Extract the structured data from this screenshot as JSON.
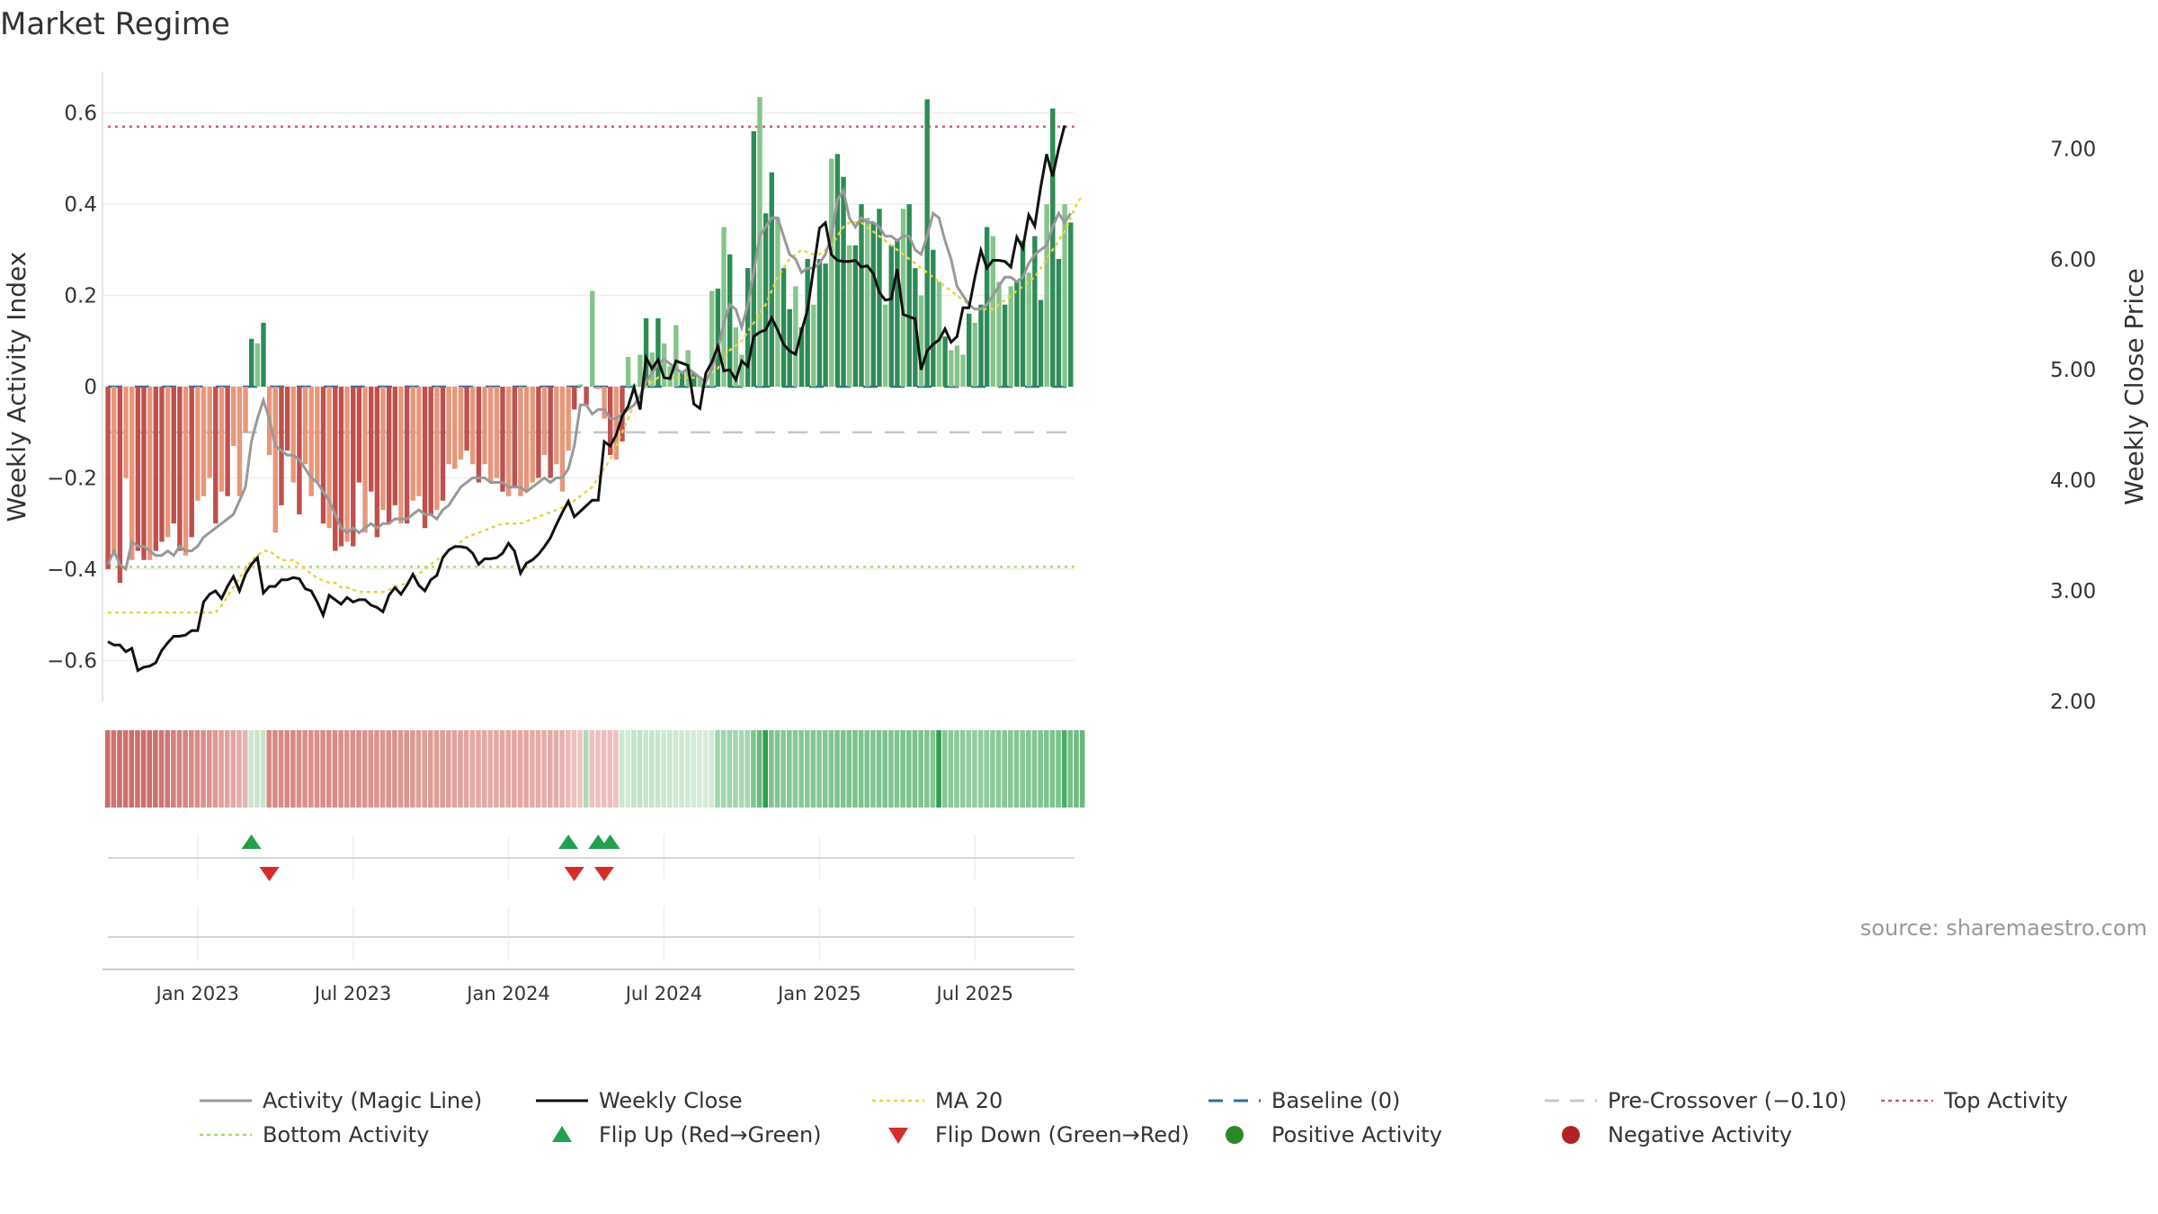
{
  "title": "Market Regime",
  "source": "source: sharemaestro.com",
  "chart_data": {
    "type": "bar",
    "x_axis": {
      "ticks": [
        {
          "label": "Jan 2023",
          "week": 15
        },
        {
          "label": "Jul 2023",
          "week": 41
        },
        {
          "label": "Jan 2024",
          "week": 67
        },
        {
          "label": "Jul 2024",
          "week": 93
        },
        {
          "label": "Jan 2025",
          "week": 119
        },
        {
          "label": "Jul 2025",
          "week": 145
        }
      ]
    },
    "left_axis": {
      "label": "Weekly Activity Index",
      "range": [
        -0.69,
        0.69
      ],
      "ticks": [
        0.6,
        0.4,
        0.2,
        0,
        -0.2,
        -0.4,
        -0.6
      ],
      "tick_labels": [
        "0.6",
        "0.4",
        "0.2",
        "0",
        "−0.2",
        "−0.4",
        "−0.6"
      ]
    },
    "right_axis": {
      "label": "Weekly Close Price",
      "range": [
        2.0,
        7.45
      ],
      "ticks": [
        7.0,
        6.0,
        5.0,
        4.0,
        3.0,
        2.0
      ],
      "tick_labels": [
        "7.00",
        "6.00",
        "5.00",
        "4.00",
        "3.00",
        "2.00"
      ]
    },
    "reference_lines": {
      "baseline": 0,
      "pre_crossover": -0.1,
      "top_activity": 0.57,
      "bottom_activity": -0.395
    },
    "activity_bars": [
      -0.4,
      -0.37,
      -0.43,
      -0.2,
      -0.38,
      -0.36,
      -0.38,
      -0.38,
      -0.36,
      -0.34,
      -0.33,
      -0.3,
      -0.36,
      -0.37,
      -0.33,
      -0.25,
      -0.24,
      -0.2,
      -0.3,
      -0.23,
      -0.24,
      -0.13,
      -0.24,
      -0.1,
      0.105,
      0.095,
      0.14,
      -0.15,
      -0.32,
      -0.26,
      -0.14,
      -0.21,
      -0.28,
      -0.17,
      -0.24,
      -0.21,
      -0.3,
      -0.31,
      -0.36,
      -0.35,
      -0.34,
      -0.35,
      -0.21,
      -0.32,
      -0.23,
      -0.33,
      -0.27,
      -0.3,
      -0.26,
      -0.3,
      -0.3,
      -0.25,
      -0.24,
      -0.31,
      -0.28,
      -0.27,
      -0.25,
      -0.17,
      -0.18,
      -0.16,
      -0.14,
      -0.17,
      -0.21,
      -0.17,
      -0.21,
      -0.2,
      -0.23,
      -0.24,
      -0.22,
      -0.24,
      -0.23,
      -0.21,
      -0.2,
      -0.15,
      -0.2,
      -0.17,
      -0.23,
      -0.14,
      -0.05,
      0.005,
      -0.04,
      0.21,
      -0.005,
      -0.07,
      -0.15,
      -0.16,
      -0.12,
      0.065,
      0.005,
      0.07,
      0.15,
      0.075,
      0.15,
      0.095,
      0.045,
      0.135,
      0.03,
      0.08,
      0.03,
      0.02,
      0.005,
      0.21,
      0.215,
      0.35,
      0.29,
      0.13,
      0.07,
      0.26,
      0.56,
      0.635,
      0.38,
      0.47,
      0.37,
      0.26,
      0.17,
      0.22,
      0.13,
      0.28,
      0.18,
      0.28,
      0.27,
      0.5,
      0.51,
      0.46,
      0.31,
      0.31,
      0.4,
      0.37,
      0.36,
      0.39,
      0.18,
      0.31,
      0.32,
      0.39,
      0.4,
      0.26,
      0.2,
      0.63,
      0.3,
      0.23,
      0.11,
      0.08,
      0.09,
      0.07,
      0.16,
      0.14,
      0.18,
      0.35,
      0.33,
      0.23,
      0.18,
      0.22,
      0.23,
      0.32,
      0.25,
      0.33,
      0.19,
      0.4,
      0.61,
      0.28,
      0.4,
      0.36
    ],
    "series": [
      {
        "name": "Activity (Magic Line)",
        "values": [
          -0.39,
          -0.36,
          -0.39,
          -0.4,
          -0.34,
          -0.35,
          -0.35,
          -0.36,
          -0.37,
          -0.37,
          -0.36,
          -0.37,
          -0.35,
          -0.36,
          -0.36,
          -0.35,
          -0.33,
          -0.32,
          -0.31,
          -0.3,
          -0.29,
          -0.28,
          -0.25,
          -0.22,
          -0.12,
          -0.07,
          -0.03,
          -0.07,
          -0.13,
          -0.14,
          -0.15,
          -0.15,
          -0.16,
          -0.18,
          -0.2,
          -0.21,
          -0.23,
          -0.25,
          -0.28,
          -0.31,
          -0.32,
          -0.31,
          -0.32,
          -0.31,
          -0.3,
          -0.31,
          -0.3,
          -0.3,
          -0.29,
          -0.29,
          -0.29,
          -0.28,
          -0.27,
          -0.28,
          -0.28,
          -0.29,
          -0.27,
          -0.26,
          -0.24,
          -0.22,
          -0.21,
          -0.2,
          -0.2,
          -0.2,
          -0.21,
          -0.21,
          -0.21,
          -0.22,
          -0.22,
          -0.22,
          -0.23,
          -0.22,
          -0.21,
          -0.2,
          -0.21,
          -0.2,
          -0.2,
          -0.18,
          -0.13,
          -0.04,
          -0.04,
          -0.06,
          -0.05,
          -0.05,
          -0.07,
          -0.07,
          -0.06,
          -0.05,
          -0.04,
          -0.02,
          0.01,
          0.03,
          0.05,
          0.06,
          0.05,
          0.04,
          0.03,
          0.04,
          0.03,
          0.02,
          0.01,
          0.04,
          0.08,
          0.14,
          0.18,
          0.17,
          0.13,
          0.18,
          0.25,
          0.33,
          0.35,
          0.37,
          0.37,
          0.33,
          0.29,
          0.28,
          0.25,
          0.26,
          0.26,
          0.27,
          0.29,
          0.33,
          0.41,
          0.43,
          0.37,
          0.35,
          0.37,
          0.36,
          0.36,
          0.35,
          0.33,
          0.33,
          0.32,
          0.33,
          0.33,
          0.3,
          0.29,
          0.33,
          0.38,
          0.37,
          0.32,
          0.28,
          0.22,
          0.2,
          0.18,
          0.17,
          0.17,
          0.18,
          0.2,
          0.22,
          0.24,
          0.24,
          0.23,
          0.24,
          0.27,
          0.29,
          0.3,
          0.31,
          0.35,
          0.38,
          0.36,
          0.38
        ]
      },
      {
        "name": "Weekly Close",
        "values": [
          2.54,
          2.51,
          2.51,
          2.45,
          2.48,
          2.28,
          2.31,
          2.32,
          2.35,
          2.46,
          2.53,
          2.59,
          2.59,
          2.6,
          2.64,
          2.64,
          2.9,
          2.97,
          3.0,
          2.93,
          3.04,
          3.13,
          3.0,
          3.15,
          3.24,
          3.3,
          2.98,
          3.04,
          3.04,
          3.1,
          3.1,
          3.12,
          3.11,
          3.02,
          3.0,
          2.9,
          2.78,
          2.96,
          2.92,
          2.88,
          2.94,
          2.9,
          2.92,
          2.92,
          2.87,
          2.85,
          2.81,
          2.96,
          3.03,
          2.97,
          3.05,
          3.15,
          3.05,
          3.0,
          3.1,
          3.14,
          3.3,
          3.37,
          3.4,
          3.4,
          3.39,
          3.34,
          3.24,
          3.29,
          3.29,
          3.3,
          3.34,
          3.43,
          3.36,
          3.16,
          3.25,
          3.28,
          3.33,
          3.4,
          3.48,
          3.6,
          3.71,
          3.81,
          3.67,
          3.72,
          3.77,
          3.82,
          3.82,
          4.35,
          4.31,
          4.41,
          4.58,
          4.67,
          4.84,
          4.64,
          5.11,
          5.01,
          5.09,
          4.93,
          4.92,
          5.08,
          5.06,
          5.04,
          4.69,
          4.65,
          4.97,
          5.07,
          5.21,
          4.99,
          5.0,
          4.91,
          5.08,
          5.03,
          5.3,
          5.34,
          5.36,
          5.47,
          5.36,
          5.23,
          5.17,
          5.14,
          5.35,
          5.54,
          5.91,
          6.28,
          6.33,
          6.04,
          5.99,
          5.98,
          5.98,
          5.99,
          5.93,
          5.94,
          5.87,
          5.7,
          5.63,
          5.64,
          5.91,
          5.5,
          5.48,
          5.46,
          5.0,
          5.17,
          5.23,
          5.27,
          5.37,
          5.25,
          5.3,
          5.56,
          5.56,
          5.84,
          6.08,
          5.92,
          5.99,
          5.99,
          5.98,
          5.93,
          6.2,
          6.1,
          6.4,
          6.3,
          6.65,
          6.95,
          6.75,
          7.0,
          7.21
        ]
      },
      {
        "name": "MA 20",
        "values": [
          -0.495,
          -0.495,
          -0.495,
          -0.495,
          -0.495,
          -0.495,
          -0.495,
          -0.495,
          -0.495,
          -0.495,
          -0.495,
          -0.495,
          -0.495,
          -0.495,
          -0.495,
          -0.495,
          -0.495,
          -0.495,
          -0.495,
          -0.48,
          -0.46,
          -0.44,
          -0.42,
          -0.4,
          -0.38,
          -0.37,
          -0.36,
          -0.36,
          -0.37,
          -0.38,
          -0.38,
          -0.38,
          -0.39,
          -0.4,
          -0.41,
          -0.42,
          -0.425,
          -0.43,
          -0.43,
          -0.44,
          -0.44,
          -0.445,
          -0.45,
          -0.45,
          -0.45,
          -0.45,
          -0.45,
          -0.445,
          -0.44,
          -0.435,
          -0.43,
          -0.42,
          -0.41,
          -0.4,
          -0.39,
          -0.38,
          -0.37,
          -0.36,
          -0.35,
          -0.34,
          -0.33,
          -0.325,
          -0.32,
          -0.315,
          -0.31,
          -0.305,
          -0.3,
          -0.3,
          -0.3,
          -0.3,
          -0.295,
          -0.29,
          -0.285,
          -0.28,
          -0.275,
          -0.27,
          -0.265,
          -0.26,
          -0.25,
          -0.24,
          -0.23,
          -0.22,
          -0.2,
          -0.18,
          -0.16,
          -0.13,
          -0.1,
          -0.07,
          -0.04,
          -0.02,
          0.0,
          0.01,
          0.02,
          0.02,
          0.02,
          0.02,
          0.02,
          0.02,
          0.02,
          0.02,
          0.02,
          0.03,
          0.04,
          0.06,
          0.08,
          0.09,
          0.1,
          0.12,
          0.14,
          0.16,
          0.18,
          0.21,
          0.24,
          0.26,
          0.28,
          0.29,
          0.3,
          0.295,
          0.29,
          0.29,
          0.3,
          0.31,
          0.33,
          0.35,
          0.36,
          0.36,
          0.36,
          0.35,
          0.34,
          0.33,
          0.32,
          0.31,
          0.3,
          0.29,
          0.28,
          0.27,
          0.26,
          0.25,
          0.24,
          0.23,
          0.22,
          0.21,
          0.2,
          0.19,
          0.18,
          0.17,
          0.17,
          0.17,
          0.17,
          0.18,
          0.19,
          0.2,
          0.21,
          0.22,
          0.23,
          0.24,
          0.26,
          0.28,
          0.3,
          0.32,
          0.34,
          0.37,
          0.4,
          0.42
        ]
      }
    ],
    "regime_strip": [
      -0.3,
      -0.28,
      -0.3,
      -0.29,
      -0.3,
      -0.29,
      -0.3,
      -0.3,
      -0.29,
      -0.28,
      -0.27,
      -0.25,
      -0.24,
      -0.23,
      -0.22,
      -0.21,
      -0.2,
      -0.19,
      -0.17,
      -0.15,
      -0.14,
      -0.13,
      -0.11,
      -0.09,
      0.07,
      0.08,
      0.08,
      -0.22,
      -0.22,
      -0.21,
      -0.22,
      -0.22,
      -0.21,
      -0.2,
      -0.2,
      -0.2,
      -0.21,
      -0.21,
      -0.21,
      -0.2,
      -0.19,
      -0.2,
      -0.2,
      -0.19,
      -0.19,
      -0.19,
      -0.18,
      -0.19,
      -0.19,
      -0.18,
      -0.18,
      -0.17,
      -0.16,
      -0.16,
      -0.16,
      -0.16,
      -0.16,
      -0.15,
      -0.14,
      -0.14,
      -0.13,
      -0.12,
      -0.12,
      -0.12,
      -0.12,
      -0.13,
      -0.13,
      -0.13,
      -0.13,
      -0.13,
      -0.13,
      -0.12,
      -0.12,
      -0.11,
      -0.12,
      -0.11,
      -0.1,
      -0.07,
      -0.05,
      -0.04,
      0.16,
      -0.05,
      -0.05,
      -0.06,
      -0.06,
      -0.05,
      0.06,
      0.04,
      0.1,
      0.11,
      0.08,
      0.09,
      0.08,
      0.06,
      0.07,
      0.05,
      0.06,
      0.05,
      0.04,
      0.03,
      0.03,
      0.04,
      0.2,
      0.2,
      0.21,
      0.2,
      0.18,
      0.19,
      0.32,
      0.4,
      0.63,
      0.33,
      0.32,
      0.3,
      0.31,
      0.29,
      0.3,
      0.3,
      0.31,
      0.3,
      0.31,
      0.32,
      0.33,
      0.33,
      0.34,
      0.34,
      0.33,
      0.33,
      0.32,
      0.33,
      0.33,
      0.32,
      0.32,
      0.33,
      0.33,
      0.34,
      0.33,
      0.32,
      0.31,
      0.6,
      0.3,
      0.29,
      0.28,
      0.27,
      0.26,
      0.26,
      0.26,
      0.27,
      0.28,
      0.29,
      0.3,
      0.3,
      0.31,
      0.3,
      0.31,
      0.31,
      0.32,
      0.33,
      0.33,
      0.34,
      0.5,
      0.36,
      0.38,
      0.4
    ],
    "flip_up_weeks": [
      24,
      77,
      82,
      84
    ],
    "flip_down_weeks": [
      27,
      78,
      83
    ],
    "legend_placement": "bottom",
    "legend": [
      {
        "name": "Activity (Magic Line)",
        "symbol": "line",
        "color": "#999999"
      },
      {
        "name": "Weekly Close",
        "symbol": "line",
        "color": "#111111"
      },
      {
        "name": "MA 20",
        "symbol": "dotted",
        "color": "#e8d43c"
      },
      {
        "name": "Baseline (0)",
        "symbol": "dashed",
        "color": "#2b6f9e"
      },
      {
        "name": "Pre-Crossover (−0.10)",
        "symbol": "dashed",
        "color": "#c8c8c8"
      },
      {
        "name": "Top Activity",
        "symbol": "dotted",
        "color": "#d05a6e"
      },
      {
        "name": "Bottom Activity",
        "symbol": "dotted",
        "color": "#a8d86a"
      },
      {
        "name": "Flip Up (Red→Green)",
        "symbol": "triangle-up",
        "color": "#22a04b"
      },
      {
        "name": "Flip Down (Green→Red)",
        "symbol": "triangle-down",
        "color": "#d62c2c"
      },
      {
        "name": "Positive Activity",
        "symbol": "circle",
        "color": "#2a8a2a"
      },
      {
        "name": "Negative Activity",
        "symbol": "circle",
        "color": "#b22222"
      }
    ],
    "colors": {
      "pos_strong": "#2e8b57",
      "pos_light": "#86c48c",
      "neg_strong": "#c0504d",
      "neg_light": "#e8967a",
      "close": "#111111",
      "magic": "#999999",
      "ma": "#e8d43c"
    }
  }
}
